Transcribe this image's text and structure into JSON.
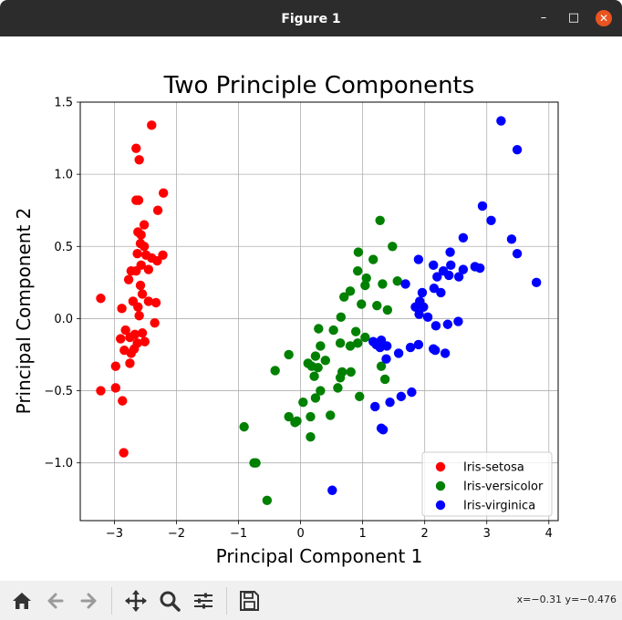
{
  "window": {
    "title": "Figure 1",
    "minimize_glyph": "–",
    "maximize_glyph": "□",
    "close_glyph": "✕"
  },
  "toolbar": {
    "buttons": [
      "home-icon",
      "back-arrow-icon",
      "forward-arrow-icon",
      "pan-move-icon",
      "zoom-magnifier-icon",
      "configure-subplots-icon",
      "save-floppy-icon"
    ],
    "coords": "x=−0.31 y=−0.476"
  },
  "colors": {
    "setosa": "#ff0000",
    "versicolor": "#008000",
    "virginica": "#0000ff"
  },
  "chart_data": {
    "type": "scatter",
    "title": "Two Principle Components",
    "xlabel": "Principal Component 1",
    "ylabel": "Principal Component 2",
    "xlim": [
      -3.55,
      4.15
    ],
    "ylim": [
      -1.4,
      1.5
    ],
    "xticks": [
      -3,
      -2,
      -1,
      0,
      1,
      2,
      3,
      4
    ],
    "xtick_labels": [
      "−3",
      "−2",
      "−1",
      "0",
      "1",
      "2",
      "3",
      "4"
    ],
    "yticks": [
      -1.0,
      -0.5,
      0.0,
      0.5,
      1.0,
      1.5
    ],
    "ytick_labels": [
      "−1.0",
      "−0.5",
      "0.0",
      "0.5",
      "1.0",
      "1.5"
    ],
    "grid": true,
    "legend_position": "lower right",
    "series": [
      {
        "name": "Iris-setosa",
        "color": "#ff0000",
        "points": [
          [
            -2.4,
            1.34
          ],
          [
            -2.65,
            1.18
          ],
          [
            -2.6,
            1.1
          ],
          [
            -2.65,
            0.82
          ],
          [
            -2.61,
            0.82
          ],
          [
            -2.21,
            0.87
          ],
          [
            -2.3,
            0.75
          ],
          [
            -2.52,
            0.65
          ],
          [
            -2.62,
            0.6
          ],
          [
            -2.57,
            0.58
          ],
          [
            -2.58,
            0.52
          ],
          [
            -2.52,
            0.5
          ],
          [
            -2.63,
            0.45
          ],
          [
            -2.22,
            0.44
          ],
          [
            -2.49,
            0.44
          ],
          [
            -2.4,
            0.42
          ],
          [
            -2.31,
            0.4
          ],
          [
            -2.57,
            0.37
          ],
          [
            -2.65,
            0.33
          ],
          [
            -2.73,
            0.33
          ],
          [
            -2.45,
            0.34
          ],
          [
            -2.77,
            0.27
          ],
          [
            -2.58,
            0.23
          ],
          [
            -2.55,
            0.17
          ],
          [
            -2.7,
            0.12
          ],
          [
            -2.45,
            0.12
          ],
          [
            -2.33,
            0.11
          ],
          [
            -3.22,
            0.14
          ],
          [
            -2.62,
            0.08
          ],
          [
            -2.88,
            0.07
          ],
          [
            -2.6,
            0.02
          ],
          [
            -2.35,
            -0.03
          ],
          [
            -2.82,
            -0.08
          ],
          [
            -2.67,
            -0.11
          ],
          [
            -2.55,
            -0.1
          ],
          [
            -2.75,
            -0.13
          ],
          [
            -2.9,
            -0.14
          ],
          [
            -2.63,
            -0.17
          ],
          [
            -2.51,
            -0.16
          ],
          [
            -2.68,
            -0.21
          ],
          [
            -2.84,
            -0.22
          ],
          [
            -2.73,
            -0.24
          ],
          [
            -2.75,
            -0.31
          ],
          [
            -2.98,
            -0.33
          ],
          [
            -3.22,
            -0.5
          ],
          [
            -2.98,
            -0.48
          ],
          [
            -2.87,
            -0.57
          ],
          [
            -2.85,
            -0.93
          ]
        ]
      },
      {
        "name": "Iris-versicolor",
        "color": "#008000",
        "points": [
          [
            1.28,
            0.68
          ],
          [
            1.48,
            0.5
          ],
          [
            0.93,
            0.46
          ],
          [
            1.17,
            0.41
          ],
          [
            0.92,
            0.33
          ],
          [
            1.06,
            0.28
          ],
          [
            1.56,
            0.26
          ],
          [
            1.04,
            0.23
          ],
          [
            1.32,
            0.24
          ],
          [
            0.8,
            0.19
          ],
          [
            0.7,
            0.15
          ],
          [
            0.98,
            0.1
          ],
          [
            1.23,
            0.09
          ],
          [
            1.4,
            0.06
          ],
          [
            0.65,
            0.01
          ],
          [
            0.29,
            -0.07
          ],
          [
            0.53,
            -0.08
          ],
          [
            0.89,
            -0.09
          ],
          [
            1.04,
            -0.13
          ],
          [
            0.92,
            -0.17
          ],
          [
            0.64,
            -0.17
          ],
          [
            0.8,
            -0.19
          ],
          [
            0.32,
            -0.19
          ],
          [
            -0.19,
            -0.25
          ],
          [
            0.24,
            -0.26
          ],
          [
            0.4,
            -0.29
          ],
          [
            1.3,
            -0.33
          ],
          [
            0.28,
            -0.34
          ],
          [
            0.12,
            -0.31
          ],
          [
            0.18,
            -0.33
          ],
          [
            -0.41,
            -0.36
          ],
          [
            0.67,
            -0.37
          ],
          [
            0.81,
            -0.37
          ],
          [
            0.22,
            -0.4
          ],
          [
            0.64,
            -0.41
          ],
          [
            1.36,
            -0.42
          ],
          [
            0.6,
            -0.48
          ],
          [
            0.32,
            -0.5
          ],
          [
            0.24,
            -0.55
          ],
          [
            0.95,
            -0.54
          ],
          [
            0.04,
            -0.58
          ],
          [
            0.48,
            -0.67
          ],
          [
            0.16,
            -0.68
          ],
          [
            -0.19,
            -0.68
          ],
          [
            -0.06,
            -0.71
          ],
          [
            -0.09,
            -0.72
          ],
          [
            -0.91,
            -0.75
          ],
          [
            -0.75,
            -1.0
          ],
          [
            0.16,
            -0.82
          ],
          [
            -0.54,
            -1.26
          ],
          [
            -0.72,
            -1.0
          ]
        ]
      },
      {
        "name": "Iris-virginica",
        "color": "#0000ff",
        "points": [
          [
            3.23,
            1.37
          ],
          [
            3.49,
            1.17
          ],
          [
            2.93,
            0.78
          ],
          [
            3.07,
            0.68
          ],
          [
            2.62,
            0.56
          ],
          [
            3.4,
            0.55
          ],
          [
            2.41,
            0.46
          ],
          [
            3.49,
            0.45
          ],
          [
            1.9,
            0.41
          ],
          [
            2.14,
            0.37
          ],
          [
            2.42,
            0.37
          ],
          [
            2.81,
            0.36
          ],
          [
            2.89,
            0.35
          ],
          [
            2.3,
            0.33
          ],
          [
            2.62,
            0.34
          ],
          [
            2.39,
            0.3
          ],
          [
            2.55,
            0.29
          ],
          [
            3.8,
            0.25
          ],
          [
            2.2,
            0.29
          ],
          [
            1.69,
            0.24
          ],
          [
            2.15,
            0.21
          ],
          [
            2.26,
            0.18
          ],
          [
            1.96,
            0.18
          ],
          [
            1.92,
            0.12
          ],
          [
            1.85,
            0.08
          ],
          [
            1.98,
            0.08
          ],
          [
            1.91,
            0.03
          ],
          [
            2.05,
            0.01
          ],
          [
            2.54,
            -0.02
          ],
          [
            2.37,
            -0.04
          ],
          [
            2.18,
            -0.05
          ],
          [
            1.17,
            -0.16
          ],
          [
            1.22,
            -0.18
          ],
          [
            1.3,
            -0.15
          ],
          [
            1.39,
            -0.19
          ],
          [
            1.28,
            -0.2
          ],
          [
            1.9,
            -0.18
          ],
          [
            1.77,
            -0.2
          ],
          [
            2.14,
            -0.21
          ],
          [
            2.17,
            -0.22
          ],
          [
            2.33,
            -0.24
          ],
          [
            1.58,
            -0.24
          ],
          [
            1.38,
            -0.28
          ],
          [
            1.79,
            -0.51
          ],
          [
            1.62,
            -0.54
          ],
          [
            1.44,
            -0.58
          ],
          [
            1.2,
            -0.61
          ],
          [
            1.3,
            -0.76
          ],
          [
            1.33,
            -0.77
          ],
          [
            0.51,
            -1.19
          ]
        ]
      }
    ]
  }
}
